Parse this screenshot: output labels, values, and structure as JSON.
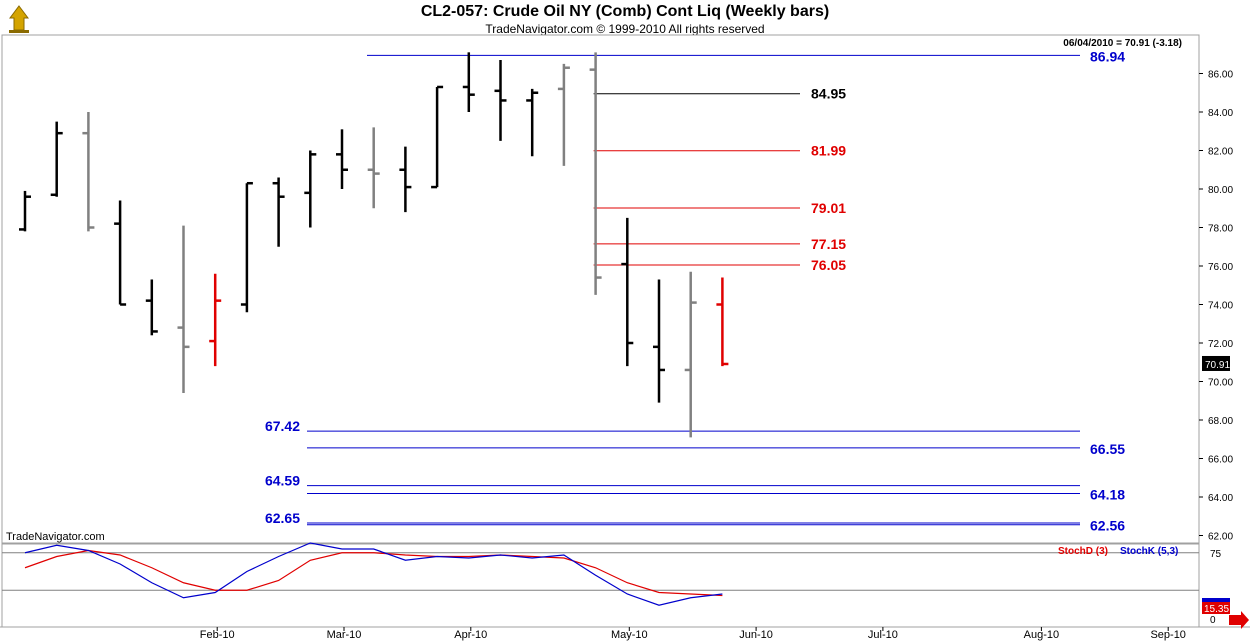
{
  "header": {
    "title": "CL2-057:  Crude Oil NY (Comb) Cont Liq  (Weekly bars)",
    "subtitle": "TradeNavigator.com © 1999-2010 All rights reserved",
    "last_info": "06/04/2010 = 70.91 (-3.18)",
    "watermark": "TradeNavigator.com"
  },
  "colors": {
    "up_bar": "#000000",
    "flat_bar": "#808080",
    "last_bar": "#e00000",
    "level_blue": "#0000cc",
    "level_red": "#e00000",
    "level_black": "#000000",
    "stoch_d": "#e00000",
    "stoch_k": "#0000cc",
    "last_price_bg": "#000000"
  },
  "chart_data": [
    {
      "type": "ohlc",
      "title": "CL2-057:  Crude Oil NY (Comb) Cont Liq  (Weekly bars)",
      "ylim": [
        61.5,
        87.5
      ],
      "y_ticks": [
        "62.00",
        "64.00",
        "66.00",
        "68.00",
        "70.00",
        "72.00",
        "74.00",
        "76.00",
        "78.00",
        "80.00",
        "82.00",
        "84.00",
        "86.00"
      ],
      "x_labels": [
        {
          "label": "Feb-10",
          "week": 6
        },
        {
          "label": "Mar-10",
          "week": 10
        },
        {
          "label": "Apr-10",
          "week": 14
        },
        {
          "label": "May-10",
          "week": 19
        },
        {
          "label": "Jun-10",
          "week": 23
        },
        {
          "label": "Jul-10",
          "week": 27
        },
        {
          "label": "Aug-10",
          "week": 32
        },
        {
          "label": "Sep-10",
          "week": 36
        }
      ],
      "last_price": "70.91",
      "bars": [
        {
          "w": 0,
          "o": 77.9,
          "h": 79.9,
          "l": 77.8,
          "c": 79.6,
          "color": "up"
        },
        {
          "w": 1,
          "o": 79.7,
          "h": 83.5,
          "l": 79.6,
          "c": 82.9,
          "color": "up"
        },
        {
          "w": 2,
          "o": 82.9,
          "h": 84.0,
          "l": 77.8,
          "c": 78.0,
          "color": "flat"
        },
        {
          "w": 3,
          "o": 78.2,
          "h": 79.4,
          "l": 74.0,
          "c": 74.0,
          "color": "up"
        },
        {
          "w": 4,
          "o": 74.2,
          "h": 75.3,
          "l": 72.4,
          "c": 72.6,
          "color": "up"
        },
        {
          "w": 5,
          "o": 72.8,
          "h": 78.1,
          "l": 69.4,
          "c": 71.8,
          "color": "flat"
        },
        {
          "w": 6,
          "o": 72.1,
          "h": 75.6,
          "l": 70.8,
          "c": 74.2,
          "color": "last"
        },
        {
          "w": 7,
          "o": 74.0,
          "h": 80.3,
          "l": 73.6,
          "c": 80.3,
          "color": "up"
        },
        {
          "w": 8,
          "o": 80.3,
          "h": 80.6,
          "l": 77.0,
          "c": 79.6,
          "color": "up"
        },
        {
          "w": 9,
          "o": 79.8,
          "h": 82.0,
          "l": 78.0,
          "c": 81.8,
          "color": "up"
        },
        {
          "w": 10,
          "o": 81.8,
          "h": 83.1,
          "l": 80.0,
          "c": 81.0,
          "color": "up"
        },
        {
          "w": 11,
          "o": 81.0,
          "h": 83.2,
          "l": 79.0,
          "c": 80.8,
          "color": "flat"
        },
        {
          "w": 12,
          "o": 81.0,
          "h": 82.2,
          "l": 78.8,
          "c": 80.1,
          "color": "up"
        },
        {
          "w": 13,
          "o": 80.1,
          "h": 85.3,
          "l": 80.1,
          "c": 85.3,
          "color": "up"
        },
        {
          "w": 14,
          "o": 85.3,
          "h": 87.1,
          "l": 84.0,
          "c": 84.9,
          "color": "up"
        },
        {
          "w": 15,
          "o": 85.1,
          "h": 86.7,
          "l": 82.5,
          "c": 84.6,
          "color": "up"
        },
        {
          "w": 16,
          "o": 84.6,
          "h": 85.2,
          "l": 81.7,
          "c": 85.0,
          "color": "up"
        },
        {
          "w": 17,
          "o": 85.2,
          "h": 86.5,
          "l": 81.2,
          "c": 86.3,
          "color": "flat"
        },
        {
          "w": 18,
          "o": 86.2,
          "h": 87.1,
          "l": 74.5,
          "c": 75.4,
          "color": "flat"
        },
        {
          "w": 19,
          "o": 76.1,
          "h": 78.5,
          "l": 70.8,
          "c": 72.0,
          "color": "up"
        },
        {
          "w": 20,
          "o": 71.8,
          "h": 75.3,
          "l": 68.9,
          "c": 70.6,
          "color": "up"
        },
        {
          "w": 21,
          "o": 70.6,
          "h": 75.7,
          "l": 67.1,
          "c": 74.1,
          "color": "flat"
        },
        {
          "w": 22,
          "o": 74.0,
          "h": 75.4,
          "l": 70.8,
          "c": 70.91,
          "color": "last"
        }
      ],
      "levels": [
        {
          "value": 86.94,
          "label": "86.94",
          "color": "blue",
          "side": "right",
          "w_from": 11.3
        },
        {
          "value": 84.95,
          "label": "84.95",
          "color": "black",
          "side": "mid",
          "w_from": 18.0
        },
        {
          "value": 81.99,
          "label": "81.99",
          "color": "red",
          "side": "mid",
          "w_from": 18.0
        },
        {
          "value": 79.01,
          "label": "79.01",
          "color": "red",
          "side": "mid",
          "w_from": 18.0
        },
        {
          "value": 77.15,
          "label": "77.15",
          "color": "red",
          "side": "mid",
          "w_from": 18.0
        },
        {
          "value": 76.05,
          "label": "76.05",
          "color": "red",
          "side": "mid",
          "w_from": 18.0
        },
        {
          "value": 67.42,
          "label": "67.42",
          "color": "blue",
          "side": "left",
          "w_from": 9.0
        },
        {
          "value": 66.55,
          "label": "66.55",
          "color": "blue",
          "side": "right",
          "w_from": 9.0
        },
        {
          "value": 64.59,
          "label": "64.59",
          "color": "blue",
          "side": "left",
          "w_from": 9.0
        },
        {
          "value": 64.18,
          "label": "64.18",
          "color": "blue",
          "side": "right",
          "w_from": 9.0
        },
        {
          "value": 62.65,
          "label": "62.65",
          "color": "blue",
          "side": "left",
          "w_from": 9.0
        },
        {
          "value": 62.56,
          "label": "62.56",
          "color": "blue",
          "side": "right",
          "w_from": 9.0
        }
      ]
    },
    {
      "type": "line",
      "legend": [
        "StochD (3)",
        "StochK (5,3)"
      ],
      "ylim": [
        0,
        100
      ],
      "y_ticks": [
        "75",
        "0"
      ],
      "reference_lines": [
        75,
        25
      ],
      "last_values": [
        "15.35"
      ],
      "x": [
        0,
        1,
        2,
        3,
        4,
        5,
        6,
        7,
        8,
        9,
        10,
        11,
        12,
        13,
        14,
        15,
        16,
        17,
        18,
        19,
        20,
        21,
        22
      ],
      "series": [
        {
          "name": "StochD (3)",
          "color": "stoch_d",
          "values": [
            55,
            70,
            78,
            72,
            55,
            35,
            25,
            25,
            38,
            65,
            75,
            75,
            72,
            70,
            70,
            72,
            70,
            68,
            55,
            35,
            22,
            20,
            18
          ]
        },
        {
          "name": "StochK (5,3)",
          "color": "stoch_k",
          "values": [
            75,
            85,
            78,
            60,
            35,
            15,
            22,
            50,
            70,
            88,
            80,
            80,
            65,
            70,
            68,
            72,
            68,
            72,
            45,
            20,
            5,
            15,
            20
          ]
        }
      ]
    }
  ]
}
